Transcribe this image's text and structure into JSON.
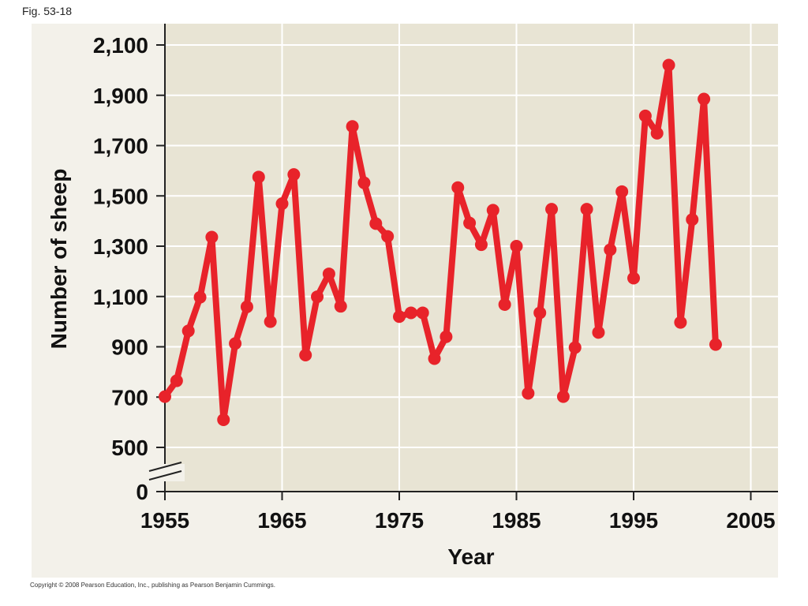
{
  "figure": {
    "label": "Fig. 53-18",
    "copyright": "Copyright © 2008 Pearson Education, Inc., publishing as Pearson Benjamin Cummings."
  },
  "colors": {
    "plot_background": "#e8e4d4",
    "outer_background": "#f3f1ea",
    "gridline": "#ffffff",
    "series": "#e8232a",
    "axis": "#222222"
  },
  "chart_data": {
    "type": "line",
    "title": "",
    "xlabel": "Year",
    "ylabel": "Number of sheep",
    "xlim": [
      1955,
      2006
    ],
    "ylim": [
      0,
      2150
    ],
    "axis_break": "y between 0 and 500",
    "grid": true,
    "x_ticks": [
      1955,
      1965,
      1975,
      1985,
      1995,
      2005
    ],
    "x_tick_labels": [
      "1955",
      "1965",
      "1975",
      "1985",
      "1995",
      "2005"
    ],
    "y_ticks": [
      0,
      500,
      700,
      900,
      1100,
      1300,
      1500,
      1700,
      1900,
      2100
    ],
    "y_tick_labels": [
      "0",
      "500",
      "700",
      "900",
      "1,100",
      "1,300",
      "1,500",
      "1,700",
      "1,900",
      "2,100"
    ],
    "series": [
      {
        "x": [
          1955,
          1956,
          1957,
          1958,
          1959,
          1960,
          1961,
          1962,
          1963,
          1964,
          1965,
          1966,
          1967,
          1968,
          1969,
          1970,
          1971,
          1972,
          1973,
          1974,
          1975,
          1976,
          1977,
          1978,
          1979,
          1980,
          1981,
          1982,
          1983,
          1984,
          1985,
          1986,
          1987,
          1988,
          1989,
          1990,
          1991,
          1992,
          1993,
          1994,
          1995,
          1996,
          1997,
          1998,
          1999,
          2000,
          2001,
          2002
        ],
        "y": [
          702,
          765,
          963,
          1097,
          1336,
          610,
          913,
          1059,
          1575,
          1000,
          1469,
          1585,
          867,
          1099,
          1190,
          1061,
          1776,
          1552,
          1390,
          1339,
          1020,
          1035,
          1035,
          853,
          940,
          1533,
          1392,
          1306,
          1443,
          1068,
          1300,
          715,
          1035,
          1447,
          702,
          897,
          1447,
          957,
          1286,
          1517,
          1173,
          1818,
          1749,
          2020,
          997,
          1406,
          1885,
          909
        ]
      }
    ]
  }
}
